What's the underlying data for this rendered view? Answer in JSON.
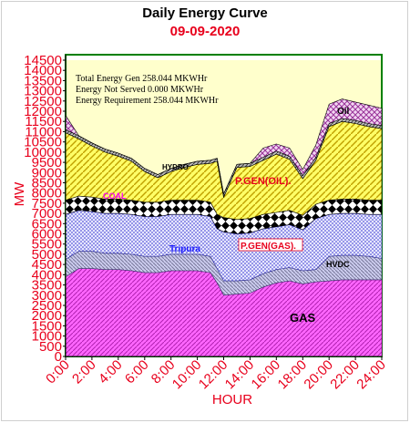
{
  "chart_data": {
    "type": "area",
    "title": "Daily Energy Curve",
    "subtitle": "09-09-2020",
    "xlabel": "HOUR",
    "ylabel": "MW",
    "ylim": [
      0,
      14500
    ],
    "yticks": [
      0,
      500,
      1000,
      1500,
      2000,
      2500,
      3000,
      3500,
      4000,
      4500,
      5000,
      5500,
      6000,
      6500,
      7000,
      7500,
      8000,
      8500,
      9000,
      9500,
      10000,
      10500,
      11000,
      11500,
      12000,
      12500,
      13000,
      13500,
      14000,
      14500
    ],
    "xticks": [
      "0:00",
      "2:00",
      "4:00",
      "6:00",
      "8:00",
      "10:00",
      "12:00",
      "14:00",
      "16:00",
      "18:00",
      "20:00",
      "22:00",
      "24:00"
    ],
    "x": [
      0,
      1,
      2,
      3,
      4,
      5,
      6,
      7,
      8,
      9,
      10,
      11,
      11.5,
      12,
      13,
      14,
      15,
      16,
      17,
      18,
      19,
      20,
      21,
      22,
      23,
      24
    ],
    "series": [
      {
        "name": "GAS",
        "color": "#ff66ff",
        "values": [
          3900,
          4300,
          4300,
          4250,
          4250,
          4200,
          4100,
          4100,
          4200,
          4200,
          4200,
          4100,
          3600,
          3000,
          3050,
          3100,
          3400,
          3600,
          3700,
          3550,
          3650,
          3700,
          3750,
          3750,
          3750,
          3750
        ]
      },
      {
        "name": "HVDC",
        "color": "#9999cc",
        "values": [
          850,
          850,
          850,
          800,
          800,
          800,
          800,
          800,
          800,
          800,
          800,
          800,
          700,
          700,
          650,
          650,
          650,
          650,
          650,
          650,
          600,
          1200,
          1200,
          1200,
          1150,
          1050
        ]
      },
      {
        "name": "P.GEN(GAS).",
        "color": "#b2b2ff",
        "values": [
          2200,
          2000,
          1950,
          1950,
          1950,
          1950,
          1950,
          1950,
          1950,
          1950,
          1950,
          1950,
          1950,
          2400,
          2300,
          2300,
          2200,
          2100,
          2100,
          2000,
          2500,
          2050,
          2050,
          2050,
          2050,
          2150
        ]
      },
      {
        "name": "Tripura",
        "color": "#6666ff",
        "values": [
          0,
          0,
          0,
          0,
          0,
          0,
          0,
          0,
          0,
          0,
          0,
          0,
          0,
          0,
          0,
          0,
          0,
          0,
          0,
          0,
          0,
          0,
          0,
          0,
          0,
          0
        ]
      },
      {
        "name": "COAL",
        "color": "#000000",
        "values": [
          700,
          700,
          700,
          700,
          700,
          700,
          700,
          700,
          700,
          700,
          700,
          700,
          700,
          700,
          700,
          700,
          700,
          700,
          700,
          700,
          700,
          700,
          700,
          700,
          700,
          700
        ]
      },
      {
        "name": "P.GEN(OIL).",
        "color": "#ffff66",
        "values": [
          3300,
          2800,
          2500,
          2300,
          2100,
          1900,
          1500,
          1200,
          1400,
          1600,
          1750,
          1900,
          2600,
          1000,
          2550,
          2550,
          2650,
          2850,
          2500,
          1800,
          2150,
          3600,
          3800,
          3700,
          3600,
          3500
        ]
      },
      {
        "name": "HYDRO",
        "color": "#808080",
        "values": [
          150,
          150,
          150,
          150,
          150,
          150,
          150,
          150,
          150,
          150,
          150,
          150,
          150,
          150,
          150,
          150,
          150,
          150,
          150,
          150,
          150,
          150,
          150,
          150,
          150,
          150
        ]
      },
      {
        "name": "Oil",
        "color": "#cc99cc",
        "values": [
          700,
          0,
          0,
          0,
          0,
          0,
          0,
          0,
          0,
          0,
          0,
          0,
          0,
          0,
          0,
          0,
          450,
          350,
          400,
          300,
          600,
          950,
          950,
          900,
          900,
          850
        ]
      }
    ],
    "annotations": [
      "Total Energy Gen 258.044 MKWHr",
      "Energy Not Served  0.000 MKWHr",
      "Energy Requirement     258.044 MKWHr"
    ],
    "grid": false,
    "legend": "none"
  }
}
